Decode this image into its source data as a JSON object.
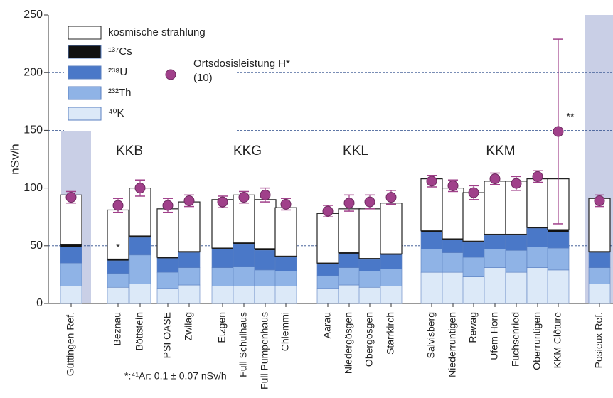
{
  "chart_data": {
    "type": "bar",
    "stacked": true,
    "y_label": "nSv/h",
    "ylim": [
      0,
      250
    ],
    "yticks": [
      0,
      50,
      100,
      150,
      200,
      250
    ],
    "grid": true,
    "categories": [
      "Güttingen Ref.",
      "Beznau",
      "Böttstein",
      "PSI OASE",
      "Zwilag",
      "Etzgen",
      "Full Schulhaus",
      "Full Pumpenhaus",
      "Chlemmi",
      "Aarau",
      "Niedergösgen",
      "Obergösgen",
      "Starrkirch",
      "Salvisberg",
      "Niederruntigen",
      "Rewag",
      "Ufem Horn",
      "Fuchsenried",
      "Oberruntigen",
      "KKM Clôture",
      "Posieux Ref."
    ],
    "groups": [
      "KKB",
      "KKG",
      "KKL",
      "KKM"
    ],
    "series": [
      {
        "name": "kosmische strahlung",
        "color": "#ffffff",
        "values": [
          43,
          42.5,
          41.5,
          42,
          43,
          42,
          41.5,
          42.5,
          42,
          43,
          38,
          43,
          44,
          45,
          44,
          42,
          46,
          46,
          42,
          44,
          46
        ]
      },
      {
        "name": "¹³⁷Cs",
        "color": "#111111",
        "values": [
          2,
          1.5,
          1.5,
          1,
          1,
          1,
          1.5,
          1.5,
          1,
          1,
          1,
          1,
          1,
          1,
          1,
          1,
          1,
          1,
          1,
          2,
          1
        ]
      },
      {
        "name": "²³⁸U",
        "color": "#4a78c8",
        "values": [
          14,
          11,
          15,
          12,
          13,
          16,
          19,
          17,
          12,
          10,
          12,
          10,
          12,
          15,
          11,
          13,
          12,
          13,
          16,
          14,
          13
        ]
      },
      {
        "name": "²³²Th",
        "color": "#8fb3e6",
        "values": [
          20,
          12,
          25,
          14,
          15,
          16,
          17,
          14,
          13,
          11,
          15,
          14,
          15,
          20,
          17,
          17,
          16,
          19,
          18,
          19,
          14
        ]
      },
      {
        "name": "⁴⁰K",
        "color": "#dce9f8",
        "values": [
          15,
          14,
          17,
          13,
          16,
          15,
          15,
          15,
          15,
          13,
          16,
          14,
          15,
          27,
          27,
          23,
          31,
          27,
          31,
          29,
          17
        ]
      },
      {
        "name": "Ortsdosisleistung H*(10)",
        "type": "scatter",
        "color": "#a0408a",
        "values": [
          92,
          85,
          100,
          85,
          89,
          88,
          92,
          94,
          86,
          80,
          87,
          88,
          92,
          106,
          102,
          96,
          108,
          104,
          110,
          149,
          89
        ],
        "errors": [
          5,
          6,
          7,
          6,
          5,
          5,
          5,
          6,
          5,
          5,
          7,
          6,
          6,
          5,
          5,
          6,
          5,
          6,
          5,
          80,
          5
        ]
      }
    ],
    "annotations": [
      "*",
      "**"
    ],
    "footnote": "*:⁴¹Ar: 0.1 ± 0.07 nSv/h"
  }
}
